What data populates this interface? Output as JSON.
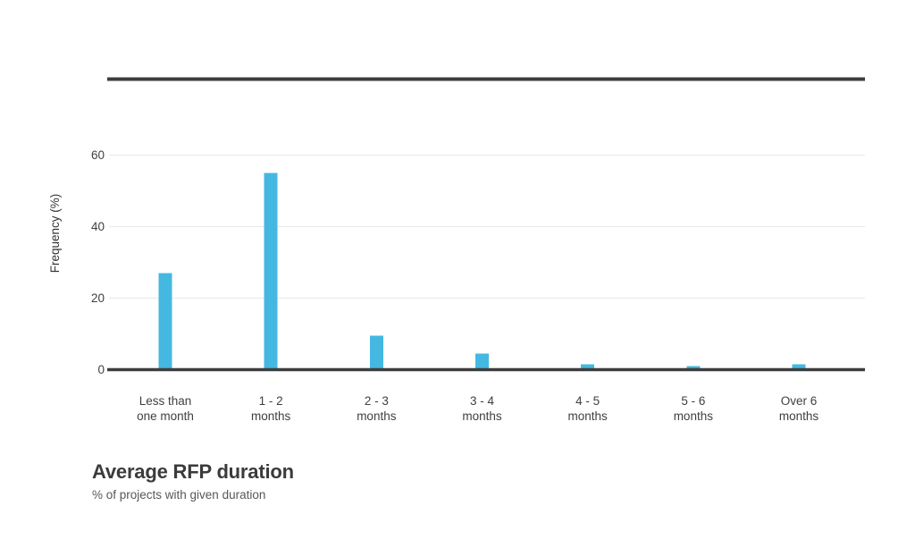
{
  "chart_data": {
    "type": "bar",
    "title": "Average RFP duration",
    "subtitle": "% of projects with given duration",
    "ylabel": "Frequency (%)",
    "xlabel": "",
    "categories": [
      "Less than\none month",
      "1 - 2\nmonths",
      "2 - 3\nmonths",
      "3 - 4\nmonths",
      "4 - 5\nmonths",
      "5 - 6\nmonths",
      "Over 6\nmonths"
    ],
    "values": [
      27,
      55,
      9.5,
      4.5,
      1.5,
      1,
      1.5
    ],
    "yticks": [
      0,
      20,
      40,
      60
    ],
    "ylim": [
      0,
      65
    ],
    "grid": true,
    "legend_position": "none",
    "colors": {
      "bar": "#45b8e2",
      "axis": "#3d3d3d",
      "grid": "#e8e8e8",
      "tick_text": "#3f3f3f",
      "axis_title_text": "#333333",
      "title_text": "#3b3b3b",
      "subtitle_text": "#575757"
    }
  }
}
